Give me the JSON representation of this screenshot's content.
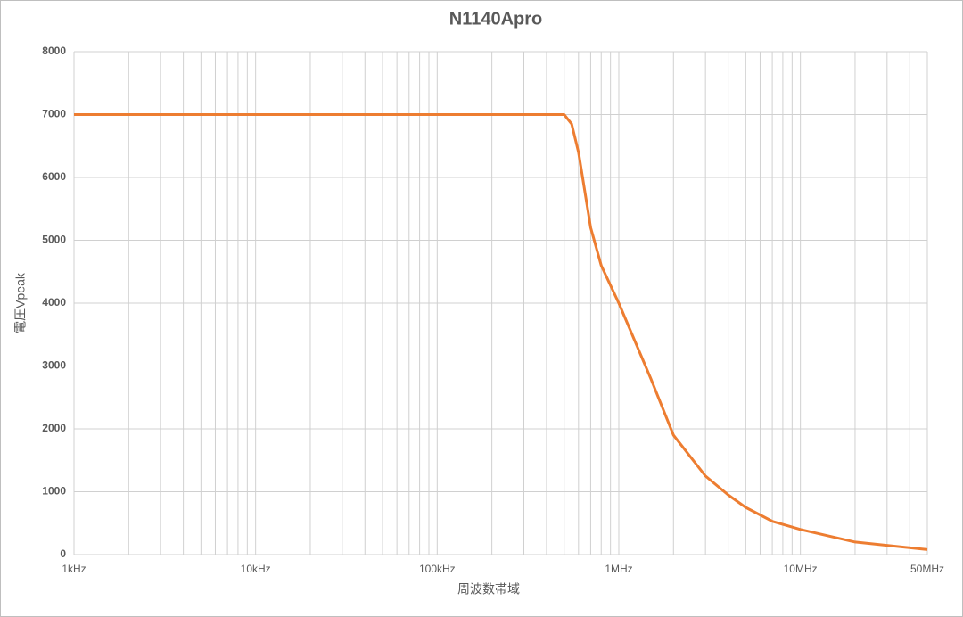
{
  "chart_data": {
    "type": "line",
    "title": "N1140Apro",
    "x_label": "周波数帯域",
    "y_label": "電圧Vpeak",
    "x_log_scale": true,
    "grid": true,
    "xlim": [
      1000,
      50000000
    ],
    "xticks": [
      {
        "value": 1000,
        "label": "1kHz"
      },
      {
        "value": 10000,
        "label": "10kHz"
      },
      {
        "value": 100000,
        "label": "100kHz"
      },
      {
        "value": 1000000,
        "label": "1MHz"
      },
      {
        "value": 10000000,
        "label": "10MHz"
      },
      {
        "value": 50000000,
        "label": "50MHz"
      }
    ],
    "x_minor_ticks": [
      2000,
      3000,
      4000,
      5000,
      6000,
      7000,
      8000,
      9000,
      20000,
      30000,
      40000,
      50000,
      60000,
      70000,
      80000,
      90000,
      200000,
      300000,
      400000,
      500000,
      600000,
      700000,
      800000,
      900000,
      2000000,
      3000000,
      4000000,
      5000000,
      6000000,
      7000000,
      8000000,
      9000000,
      20000000,
      30000000,
      40000000
    ],
    "ylim": [
      0,
      8000
    ],
    "yticks": [
      0,
      1000,
      2000,
      3000,
      4000,
      5000,
      6000,
      7000,
      8000
    ],
    "x": [
      1000,
      500000,
      550000,
      600000,
      700000,
      800000,
      1000000,
      1500000,
      2000000,
      3000000,
      4000000,
      5000000,
      7000000,
      10000000,
      20000000,
      50000000
    ],
    "series": [
      {
        "name": "電圧Vpeak",
        "color": "#ed7d31",
        "values": [
          7000,
          7000,
          6850,
          6400,
          5200,
          4600,
          4000,
          2800,
          1900,
          1250,
          950,
          750,
          530,
          400,
          200,
          80
        ]
      }
    ]
  }
}
